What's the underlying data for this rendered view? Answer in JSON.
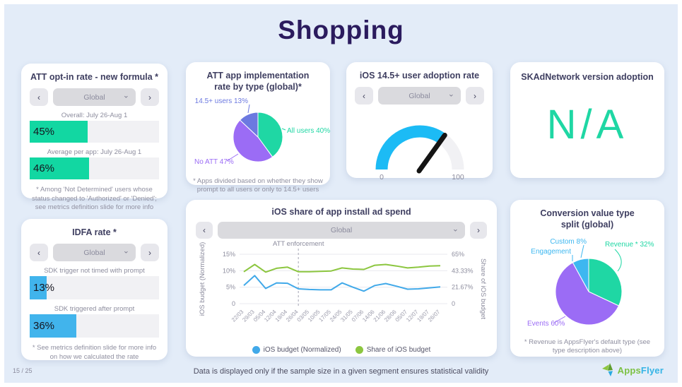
{
  "page": {
    "title": "Shopping",
    "footer": {
      "page_number": "15 / 25",
      "note": "Data is displayed only if the sample size in a given segment ensures statistical validity",
      "brand_apps": "Apps",
      "brand_flyer": "Flyer"
    }
  },
  "ui": {
    "prev": "‹",
    "next": "›",
    "chevron": "⌄"
  },
  "panels": {
    "att_opt_in": {
      "title": "ATT opt-in rate - new formula *",
      "selector": {
        "value": "Global"
      },
      "bars": [
        {
          "label": "Overall: July 26-Aug 1",
          "display": "45%"
        },
        {
          "label": "Average per app: July 26-Aug 1",
          "display": "46%"
        }
      ],
      "footnote": "* Among 'Not Determined' users whose status changed to 'Authorized' or 'Denied'; see metrics definition slide for more info"
    },
    "att_impl": {
      "title": "ATT app implementation rate by type (global)*",
      "footnote": "* Apps divided based on whether they show prompt to all users or only to 14.5+ users"
    },
    "adoption": {
      "title": "iOS 14.5+ user adoption rate",
      "selector": {
        "value": "Global"
      }
    },
    "skad": {
      "title": "SKAdNetwork version adoption",
      "value": "N/A"
    },
    "idfa": {
      "title": "IDFA rate *",
      "selector": {
        "value": "Global"
      },
      "bars": [
        {
          "label": "SDK trigger not timed with prompt",
          "display": "13%"
        },
        {
          "label": "SDK triggered after prompt",
          "display": "36%"
        }
      ],
      "footnote": "* See metrics definition slide for more info on how we calculated the rate"
    },
    "ad_spend": {
      "title": "iOS share of app install ad spend",
      "selector": {
        "value": "Global"
      }
    },
    "conversion": {
      "title": "Conversion value type split (global)",
      "footnote": "* Revenue is AppsFlyer's default type (see type description above)"
    }
  },
  "chart_data": [
    {
      "id": "att_opt_in_bars",
      "type": "bar",
      "title": "ATT opt-in rate - new formula *",
      "categories": [
        "Overall: July 26-Aug 1",
        "Average per app: July 26-Aug 1"
      ],
      "values": [
        45,
        46
      ],
      "unit": "%",
      "xlim": [
        0,
        100
      ],
      "bar_color": "#12d7a2"
    },
    {
      "id": "att_impl_pie",
      "type": "pie",
      "title": "ATT app implementation rate by type (global)*",
      "labels": [
        "All users",
        "No ATT",
        "14.5+ users"
      ],
      "values": [
        40,
        47,
        13
      ],
      "display_labels": [
        "All users 40%",
        "No ATT 47%",
        "14.5+ users 13%"
      ],
      "colors": [
        "#1fd7a4",
        "#9b6cf5",
        "#6c79e0"
      ]
    },
    {
      "id": "adoption_gauge",
      "type": "gauge",
      "title": "iOS 14.5+ user adoption rate",
      "value": 70,
      "min": 0,
      "max": 100,
      "tick_labels": [
        "0",
        "100"
      ],
      "arc_color": "#1cbbf5",
      "track_color": "#f1f1f4",
      "needle_color": "#141414"
    },
    {
      "id": "idfa_bars",
      "type": "bar",
      "title": "IDFA rate *",
      "categories": [
        "SDK trigger not timed with prompt",
        "SDK triggered after prompt"
      ],
      "values": [
        13,
        36
      ],
      "unit": "%",
      "xlim": [
        0,
        100
      ],
      "bar_color": "#41b4ec"
    },
    {
      "id": "ad_spend_lines",
      "type": "line",
      "title": "iOS share of app install ad spend",
      "x": [
        "22/03",
        "29/03",
        "05/04",
        "12/04",
        "19/04",
        "26/04",
        "03/05",
        "10/05",
        "17/05",
        "24/05",
        "31/05",
        "07/06",
        "14/06",
        "21/06",
        "28/06",
        "05/07",
        "12/07",
        "19/07",
        "26/07"
      ],
      "series": [
        {
          "name": "iOS budget (Normalized)",
          "axis": "left",
          "color": "#41a9e9",
          "values": [
            5.5,
            8.5,
            4.6,
            6.3,
            6.2,
            4.5,
            4.3,
            4.2,
            4.2,
            6.3,
            5.0,
            3.8,
            5.5,
            6.1,
            5.3,
            4.4,
            4.5,
            4.8,
            5.1
          ]
        },
        {
          "name": "Share of iOS budget",
          "axis": "right",
          "color": "#8cc63f",
          "values": [
            42,
            51.5,
            41.5,
            46.5,
            48,
            42,
            42,
            42.5,
            43,
            47,
            45.5,
            45,
            50.5,
            51.5,
            49.5,
            47,
            48,
            49.5,
            50
          ]
        }
      ],
      "ylabel_left": "iOS budget (Normalized)",
      "ylabel_right": "Share of iOS budget",
      "ylim_left": [
        0,
        15
      ],
      "ylim_right": [
        0,
        65
      ],
      "ytick_vals_left": [
        0,
        5,
        10,
        15
      ],
      "yticks_left": [
        "0",
        "5%",
        "10%",
        "15%"
      ],
      "yticks_right": [
        "0",
        "21.67%",
        "43.33%",
        "65%"
      ],
      "annotation": {
        "label": "ATT enforcement",
        "x": "26/04"
      },
      "grid": true,
      "legend_position": "bottom"
    },
    {
      "id": "conversion_pie",
      "type": "pie",
      "title": "Conversion value type split (global)",
      "labels": [
        "Revenue *",
        "Events",
        "Custom",
        "Engagement"
      ],
      "values": [
        32,
        60,
        8,
        0
      ],
      "display_labels": [
        "Revenue * 32%",
        "Events 60%",
        "Custom 8%",
        "Engagement"
      ],
      "colors": [
        "#1fd7a4",
        "#9b6cf5",
        "#3db7f0",
        "#3db7f0"
      ]
    }
  ]
}
